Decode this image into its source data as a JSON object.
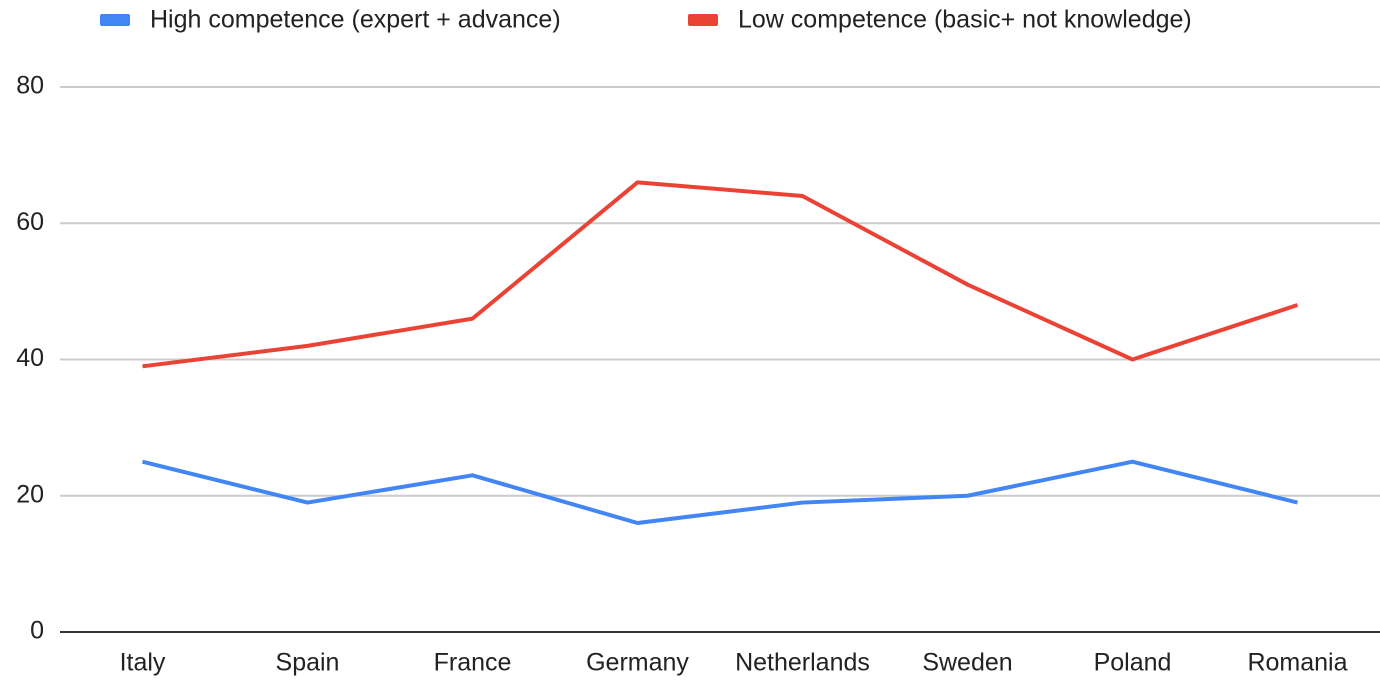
{
  "chart_data": {
    "type": "line",
    "categories": [
      "Italy",
      "Spain",
      "France",
      "Germany",
      "Netherlands",
      "Sweden",
      "Poland",
      "Romania"
    ],
    "series": [
      {
        "name": "High competence (expert + advance)",
        "color": "#4285f4",
        "values": [
          25,
          19,
          23,
          16,
          19,
          20,
          25,
          19
        ]
      },
      {
        "name": "Low competence (basic+ not knowledge)",
        "color": "#ea4335",
        "values": [
          39,
          42,
          46,
          66,
          64,
          51,
          40,
          48
        ]
      }
    ],
    "ylim": [
      0,
      80
    ],
    "yticks": [
      0,
      20,
      40,
      60,
      80
    ],
    "grid": true,
    "legend": "top"
  }
}
